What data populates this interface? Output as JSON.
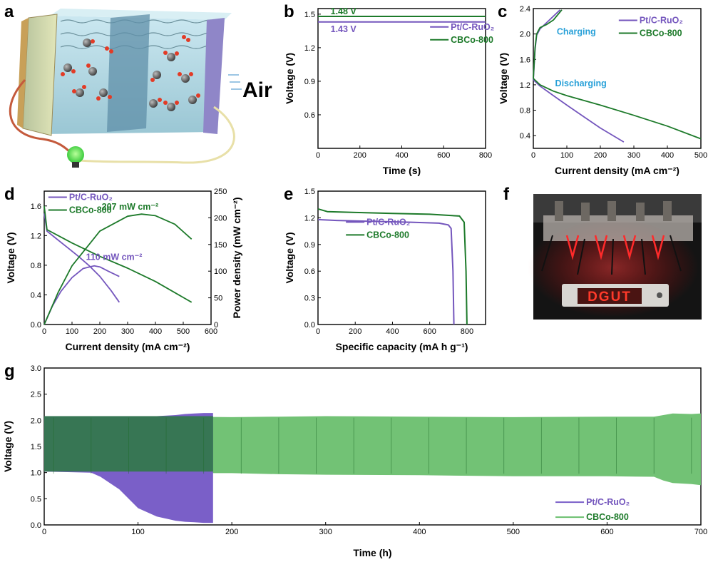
{
  "colors": {
    "purple": "#7456bd",
    "purple_fill": "#7a5fc8",
    "green": "#1d7a2a",
    "green_fill": "#6abf6e",
    "green_dark": "#2c7a40",
    "annotation_blue": "#27a0d8",
    "air_blue": "#3c78b8"
  },
  "panels": {
    "a": {
      "label": "a",
      "air_text": "Air"
    },
    "b": {
      "label": "b"
    },
    "c": {
      "label": "c"
    },
    "d": {
      "label": "d"
    },
    "e": {
      "label": "e"
    },
    "f": {
      "label": "f",
      "led_text": "DGUT"
    },
    "g": {
      "label": "g"
    }
  },
  "chart_data": [
    {
      "id": "b",
      "type": "line",
      "xlabel": "Time (s)",
      "ylabel": "Voltage (V)",
      "xlim": [
        0,
        800
      ],
      "ylim": [
        0.3,
        1.55
      ],
      "xticks": [
        0,
        200,
        400,
        600,
        800
      ],
      "yticks": [
        0.6,
        0.9,
        1.2,
        1.5
      ],
      "legend_position": "right",
      "series": [
        {
          "name": "Pt/C-RuO₂",
          "color_key": "purple",
          "x": [
            0,
            800
          ],
          "y": [
            1.43,
            1.43
          ]
        },
        {
          "name": "CBCo-800",
          "color_key": "green",
          "x": [
            0,
            800
          ],
          "y": [
            1.48,
            1.48
          ]
        }
      ],
      "annotations": [
        {
          "text": "1.48 V",
          "x": 60,
          "y": 1.48,
          "color_key": "green"
        },
        {
          "text": "1.43 V",
          "x": 60,
          "y": 1.43,
          "color_key": "purple"
        }
      ]
    },
    {
      "id": "c",
      "type": "line",
      "xlabel": "Current density (mA cm⁻²)",
      "ylabel": "Voltage (V)",
      "xlim": [
        0,
        500
      ],
      "ylim": [
        0.2,
        2.4
      ],
      "xticks": [
        0,
        100,
        200,
        300,
        400,
        500
      ],
      "yticks": [
        0.4,
        0.8,
        1.2,
        1.6,
        2.0,
        2.4
      ],
      "legend_position": "top-right",
      "series": [
        {
          "name": "Pt/C-RuO₂",
          "color_key": "purple",
          "charge": {
            "x": [
              0,
              5,
              10,
              20,
              40,
              60,
              80
            ],
            "y": [
              1.28,
              1.75,
              1.98,
              2.08,
              2.18,
              2.28,
              2.38
            ]
          },
          "discharge": {
            "x": [
              0,
              20,
              60,
              100,
              150,
              200,
              270
            ],
            "y": [
              1.28,
              1.18,
              1.03,
              0.88,
              0.7,
              0.52,
              0.3
            ]
          }
        },
        {
          "name": "CBCo-800",
          "color_key": "green",
          "charge": {
            "x": [
              0,
              5,
              10,
              20,
              40,
              60,
              85
            ],
            "y": [
              1.3,
              1.78,
              2.0,
              2.1,
              2.15,
              2.22,
              2.38
            ]
          },
          "discharge": {
            "x": [
              0,
              20,
              60,
              100,
              200,
              300,
              400,
              500
            ],
            "y": [
              1.3,
              1.2,
              1.1,
              1.03,
              0.88,
              0.72,
              0.55,
              0.35
            ]
          }
        }
      ],
      "annotations": [
        {
          "text": "Charging",
          "x": 70,
          "y": 2.1,
          "color_key": "annotation_blue"
        },
        {
          "text": "Discharging",
          "x": 65,
          "y": 1.2,
          "color_key": "annotation_blue"
        }
      ]
    },
    {
      "id": "d",
      "type": "line",
      "xlabel": "Current density (mA cm⁻²)",
      "ylabel": "Voltage (V)",
      "y2label": "Power density (mW cm⁻²)",
      "xlim": [
        0,
        600
      ],
      "ylim": [
        0.0,
        1.8
      ],
      "y2lim": [
        0,
        250
      ],
      "xticks": [
        0,
        100,
        200,
        300,
        400,
        500,
        600
      ],
      "yticks": [
        0.0,
        0.4,
        0.8,
        1.2,
        1.6
      ],
      "y2ticks": [
        0,
        50,
        100,
        150,
        200,
        250
      ],
      "legend_position": "top-left",
      "series": [
        {
          "name": "Pt/C-RuO₂",
          "color_key": "purple",
          "voltage": {
            "x": [
              0,
              10,
              40,
              80,
              120,
              160,
              200,
              240,
              270
            ],
            "y": [
              1.5,
              1.26,
              1.17,
              1.05,
              0.93,
              0.8,
              0.65,
              0.46,
              0.3
            ]
          },
          "power": {
            "x": [
              0,
              30,
              60,
              100,
              140,
              180,
              200,
              230,
              270
            ],
            "y": [
              0,
              35,
              62,
              88,
              105,
              110,
              108,
              100,
              90
            ]
          }
        },
        {
          "name": "CBCo-800",
          "color_key": "green",
          "voltage": {
            "x": [
              0,
              10,
              50,
              100,
              200,
              300,
              400,
              530
            ],
            "y": [
              1.6,
              1.28,
              1.2,
              1.1,
              0.92,
              0.76,
              0.58,
              0.3
            ]
          },
          "power": {
            "x": [
              0,
              50,
              100,
              200,
              300,
              350,
              400,
              470,
              530
            ],
            "y": [
              0,
              60,
              110,
              175,
              203,
              207,
              204,
              188,
              160
            ]
          }
        }
      ],
      "annotations": [
        {
          "text": "207 mW cm⁻²",
          "x": 360,
          "y2": 207,
          "color_key": "green"
        },
        {
          "text": "110 mW cm⁻²",
          "x": 200,
          "y2": 110,
          "color_key": "purple"
        }
      ]
    },
    {
      "id": "e",
      "type": "line",
      "xlabel": "Specific capacity (mA h g⁻¹)",
      "ylabel": "Voltage (V)",
      "xlim": [
        0,
        900
      ],
      "ylim": [
        0.0,
        1.5
      ],
      "xticks": [
        0,
        200,
        400,
        600,
        800
      ],
      "yticks": [
        0.0,
        0.3,
        0.6,
        0.9,
        1.2,
        1.5
      ],
      "legend_position": "top-right",
      "series": [
        {
          "name": "Pt/C-RuO₂",
          "color_key": "purple",
          "x": [
            0,
            100,
            300,
            500,
            650,
            700,
            715,
            725,
            730
          ],
          "y": [
            1.18,
            1.17,
            1.16,
            1.15,
            1.14,
            1.12,
            1.08,
            0.6,
            0.0
          ]
        },
        {
          "name": "CBCo-800",
          "color_key": "green",
          "x": [
            0,
            50,
            200,
            400,
            600,
            760,
            785,
            795,
            800
          ],
          "y": [
            1.3,
            1.27,
            1.26,
            1.25,
            1.24,
            1.22,
            1.15,
            0.6,
            0.0
          ]
        }
      ]
    },
    {
      "id": "g",
      "type": "area",
      "xlabel": "Time (h)",
      "ylabel": "Voltage (V)",
      "xlim": [
        0,
        700
      ],
      "ylim": [
        0.0,
        3.0
      ],
      "xticks": [
        0,
        100,
        200,
        300,
        400,
        500,
        600,
        700
      ],
      "yticks": [
        0.0,
        0.5,
        1.0,
        1.5,
        2.0,
        2.5,
        3.0
      ],
      "legend_position": "bottom-right",
      "series": [
        {
          "name": "Pt/C-RuO₂",
          "color_key": "purple_fill",
          "x": [
            0,
            50,
            60,
            80,
            100,
            120,
            140,
            150,
            160,
            170,
            180
          ],
          "upper": [
            2.08,
            2.08,
            2.08,
            2.08,
            2.08,
            2.08,
            2.1,
            2.12,
            2.13,
            2.14,
            2.14
          ],
          "lower": [
            1.02,
            1.0,
            0.92,
            0.68,
            0.32,
            0.16,
            0.08,
            0.06,
            0.05,
            0.04,
            0.04
          ]
        },
        {
          "name": "CBCo-800",
          "color_key": "green_fill",
          "x": [
            0,
            20,
            50,
            100,
            150,
            200,
            250,
            300,
            400,
            500,
            600,
            650,
            660,
            670,
            690,
            700
          ],
          "upper": [
            2.06,
            2.06,
            2.05,
            2.06,
            2.07,
            2.06,
            2.07,
            2.08,
            2.07,
            2.06,
            2.07,
            2.07,
            2.1,
            2.13,
            2.12,
            2.13
          ],
          "lower": [
            1.06,
            1.08,
            1.02,
            0.99,
            0.99,
            0.99,
            0.97,
            0.96,
            0.95,
            0.93,
            0.93,
            0.92,
            0.85,
            0.8,
            0.78,
            0.76
          ]
        }
      ]
    }
  ]
}
